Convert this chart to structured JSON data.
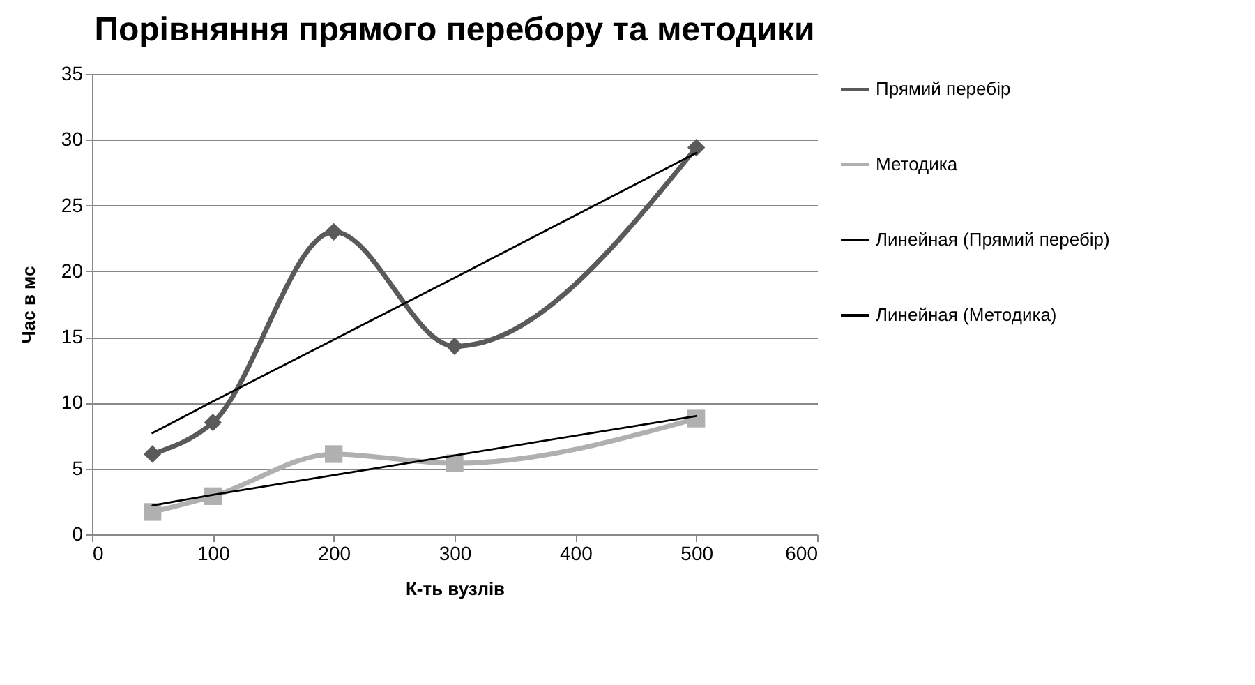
{
  "chart_data": {
    "type": "line",
    "title": "Порівняння прямого перебору та методики",
    "xlabel": "К-ть вузлів",
    "ylabel": "Час в мс",
    "x": [
      50,
      100,
      200,
      300,
      500
    ],
    "series": [
      {
        "name": "Прямий перебір",
        "color": "#5a5a5a",
        "marker": "diamond",
        "values": [
          6.1,
          8.5,
          23,
          14.3,
          29.4
        ]
      },
      {
        "name": "Методика",
        "color": "#b0b0b0",
        "marker": "square",
        "values": [
          1.7,
          2.9,
          6.1,
          5.4,
          8.8
        ]
      },
      {
        "name": "Линейная (Прямий перебір)",
        "color": "#000000",
        "marker": "none",
        "values": [
          7.7,
          10.1,
          14.8,
          19.5,
          29
        ]
      },
      {
        "name": "Линейная (Методика)",
        "color": "#000000",
        "marker": "none",
        "values": [
          2.2,
          3,
          4.5,
          6,
          9
        ]
      }
    ],
    "xlim": [
      0,
      600
    ],
    "xticks": [
      0,
      100,
      200,
      300,
      400,
      500,
      600
    ],
    "ylim": [
      0,
      35
    ],
    "yticks": [
      0,
      5,
      10,
      15,
      20,
      25,
      30,
      35
    ],
    "grid": "y",
    "legend": "right"
  }
}
